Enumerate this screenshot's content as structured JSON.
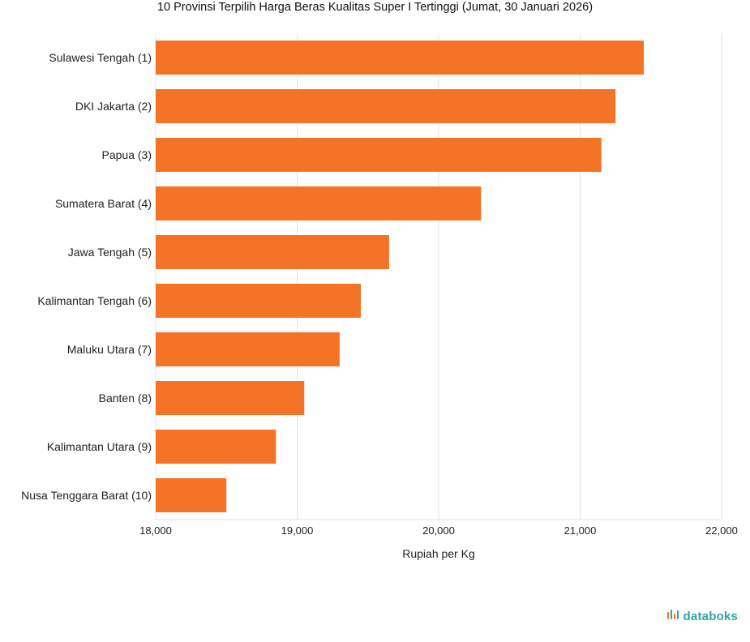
{
  "chart_data": {
    "type": "bar",
    "orientation": "horizontal",
    "title": "10 Provinsi Terpilih Harga Beras Kualitas Super I Tertinggi (Jumat, 30 Januari 2026)",
    "categories": [
      "Sulawesi Tengah (1)",
      "DKI Jakarta (2)",
      "Papua (3)",
      "Sumatera Barat (4)",
      "Jawa Tengah (5)",
      "Kalimantan Tengah (6)",
      "Maluku Utara (7)",
      "Banten (8)",
      "Kalimantan Utara (9)",
      "Nusa Tenggara Barat (10)"
    ],
    "values": [
      21450,
      21250,
      21150,
      20300,
      19650,
      19450,
      19300,
      19050,
      18850,
      18500
    ],
    "xlabel": "Rupiah per Kg",
    "ylabel": "",
    "xlim": [
      18000,
      22000
    ],
    "xticks": [
      "18,000",
      "19,000",
      "20,000",
      "21,000",
      "22,000"
    ],
    "grid": true,
    "bar_color": "#f37327",
    "grid_color": "#e3e3e3"
  },
  "branding": {
    "name": "databoks",
    "icon": "databoks-logo-icon",
    "color": "#2fa5a0",
    "accent": "#f37327"
  }
}
